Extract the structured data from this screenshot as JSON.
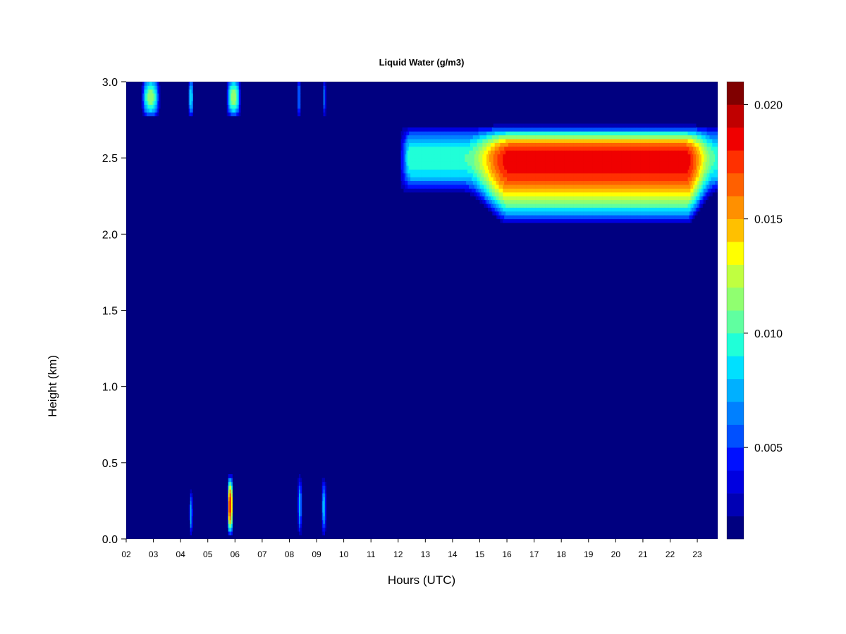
{
  "chart_data": {
    "type": "heatmap",
    "title": "Liquid Water (g/m3)",
    "xlabel": "Hours (UTC)",
    "ylabel": "Height (km)",
    "x_unit": "hours UTC",
    "xlim": [
      2,
      23.75
    ],
    "ylim": [
      0,
      3.0
    ],
    "x_ticks": [
      "02",
      "03",
      "04",
      "05",
      "06",
      "07",
      "08",
      "09",
      "10",
      "11",
      "12",
      "13",
      "14",
      "15",
      "16",
      "17",
      "18",
      "19",
      "20",
      "21",
      "22",
      "23"
    ],
    "y_ticks": [
      "0.0",
      "0.5",
      "1.0",
      "1.5",
      "2.0",
      "2.5",
      "3.0"
    ],
    "background_value": 0.001,
    "colorbar": {
      "range": [
        0.001,
        0.021
      ],
      "ticks": [
        "0.005",
        "0.010",
        "0.015",
        "0.020"
      ],
      "tick_values": [
        0.005,
        0.01,
        0.015,
        0.02
      ],
      "colors": [
        "#000080",
        "#0000b4",
        "#0000e0",
        "#0010ff",
        "#0050ff",
        "#0080ff",
        "#00b0ff",
        "#00e0ff",
        "#20ffd8",
        "#60ffa0",
        "#90ff70",
        "#c0ff40",
        "#ffff00",
        "#ffc000",
        "#ff9000",
        "#ff6000",
        "#ff3000",
        "#f00000",
        "#c00000",
        "#800000"
      ]
    },
    "features": [
      {
        "name": "cloud-layer",
        "x_range": [
          12.1,
          23.75
        ],
        "core_height_km": 2.5,
        "base_km": 2.05,
        "top_km": 2.72,
        "peak_value": 0.019,
        "peak_x_range": [
          16.2,
          22.5
        ]
      },
      {
        "name": "upper-patch",
        "x_center": 2.9,
        "width_h": 0.7,
        "y_range": [
          2.78,
          3.0
        ],
        "peak_value": 0.012
      },
      {
        "name": "upper-patch",
        "x_center": 4.38,
        "width_h": 0.2,
        "y_range": [
          2.78,
          3.0
        ],
        "peak_value": 0.009
      },
      {
        "name": "upper-patch",
        "x_center": 5.95,
        "width_h": 0.55,
        "y_range": [
          2.78,
          3.0
        ],
        "peak_value": 0.012
      },
      {
        "name": "upper-patch",
        "x_center": 8.35,
        "width_h": 0.12,
        "y_range": [
          2.78,
          3.0
        ],
        "peak_value": 0.007
      },
      {
        "name": "upper-patch",
        "x_center": 9.28,
        "width_h": 0.12,
        "y_range": [
          2.78,
          3.0
        ],
        "peak_value": 0.007
      },
      {
        "name": "low-column",
        "x_center": 4.38,
        "width_h": 0.12,
        "y_range": [
          0.02,
          0.32
        ],
        "peak_value": 0.008
      },
      {
        "name": "low-column",
        "x_center": 5.82,
        "width_h": 0.2,
        "y_range": [
          0.02,
          0.42
        ],
        "peak_value": 0.019
      },
      {
        "name": "low-column",
        "x_center": 8.38,
        "width_h": 0.15,
        "y_range": [
          0.02,
          0.42
        ],
        "peak_value": 0.008
      },
      {
        "name": "low-column",
        "x_center": 9.27,
        "width_h": 0.15,
        "y_range": [
          0.02,
          0.4
        ],
        "peak_value": 0.009
      }
    ],
    "grid": false,
    "legend": "right colorbar"
  }
}
